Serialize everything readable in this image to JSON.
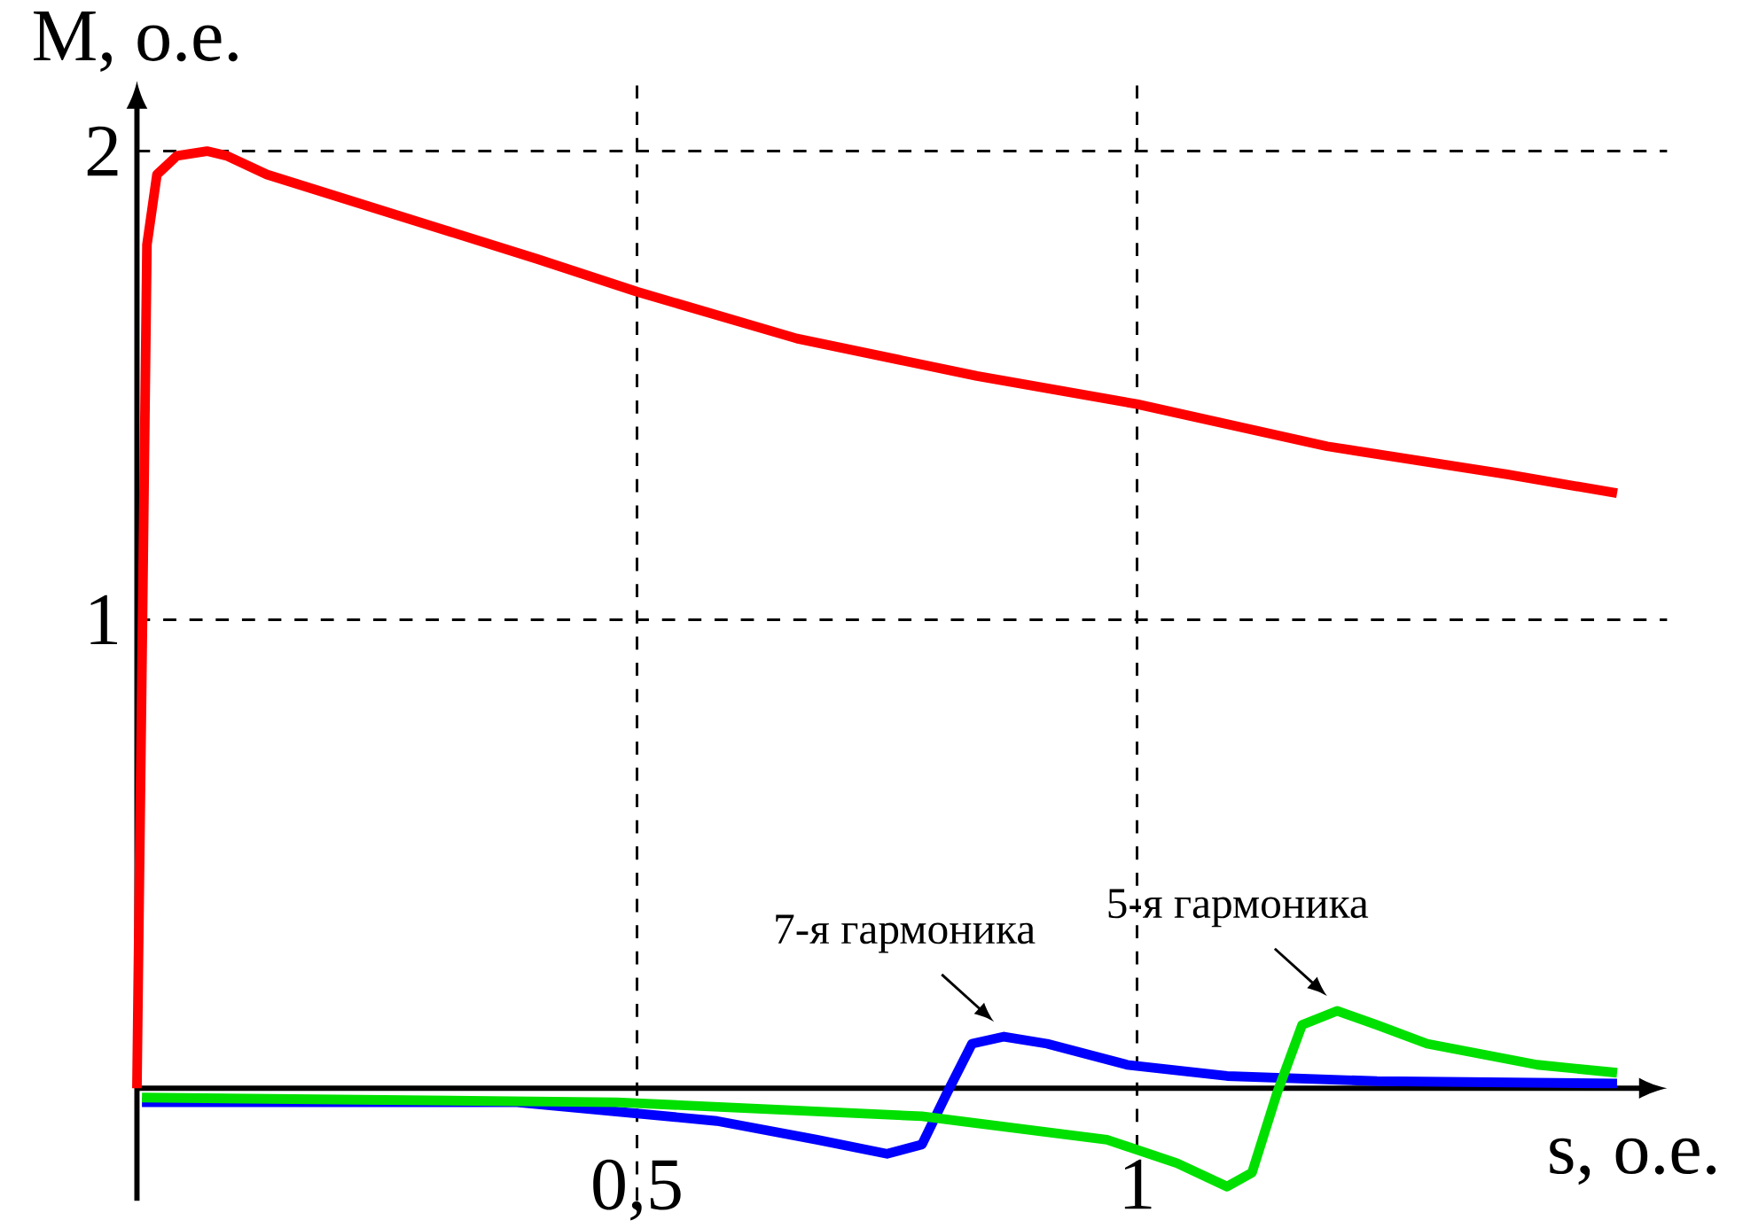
{
  "chart_data": {
    "type": "line",
    "xlabel": "s, о.е.",
    "ylabel": "M, о.е.",
    "xlim": [
      0,
      1.53
    ],
    "ylim": [
      -0.24,
      2.15
    ],
    "xticks": [
      {
        "value": 0.5,
        "label": "0,5"
      },
      {
        "value": 1,
        "label": "1"
      }
    ],
    "yticks": [
      1,
      2
    ],
    "grid": true,
    "line_style": "solid",
    "marker": "none",
    "series": [
      {
        "color": "#ff0000",
        "x": [
          0,
          0.005,
          0.01,
          0.02,
          0.04,
          0.07,
          0.09,
          0.13,
          0.22,
          0.4,
          0.5,
          0.66,
          0.84,
          1.0,
          1.19,
          1.37,
          1.48
        ],
        "values": [
          0,
          0.9,
          1.8,
          1.95,
          1.99,
          2.0,
          1.99,
          1.95,
          1.89,
          1.77,
          1.7,
          1.6,
          1.52,
          1.46,
          1.37,
          1.31,
          1.27
        ]
      },
      {
        "color": "#0000ff",
        "x": [
          0.005,
          0.38,
          0.58,
          0.68,
          0.75,
          0.785,
          0.81,
          0.835,
          0.867,
          0.91,
          0.99,
          1.09,
          1.24,
          1.48
        ],
        "values": [
          -0.03,
          -0.03,
          -0.07,
          -0.11,
          -0.14,
          -0.12,
          -0.01,
          0.095,
          0.11,
          0.095,
          0.05,
          0.026,
          0.015,
          0.01
        ]
      },
      {
        "color": "#00e000",
        "x": [
          0.005,
          0.48,
          0.785,
          0.97,
          1.04,
          1.09,
          1.115,
          1.14,
          1.165,
          1.2,
          1.24,
          1.29,
          1.4,
          1.48
        ],
        "values": [
          -0.02,
          -0.03,
          -0.06,
          -0.11,
          -0.16,
          -0.21,
          -0.18,
          -0.01,
          0.135,
          0.165,
          0.135,
          0.095,
          0.05,
          0.033
        ]
      }
    ],
    "annotations": [
      {
        "text": "7-я гармоника",
        "x": 0.867,
        "y": 0.11
      },
      {
        "text": "5-я гармоника",
        "x": 1.2,
        "y": 0.165
      }
    ]
  }
}
